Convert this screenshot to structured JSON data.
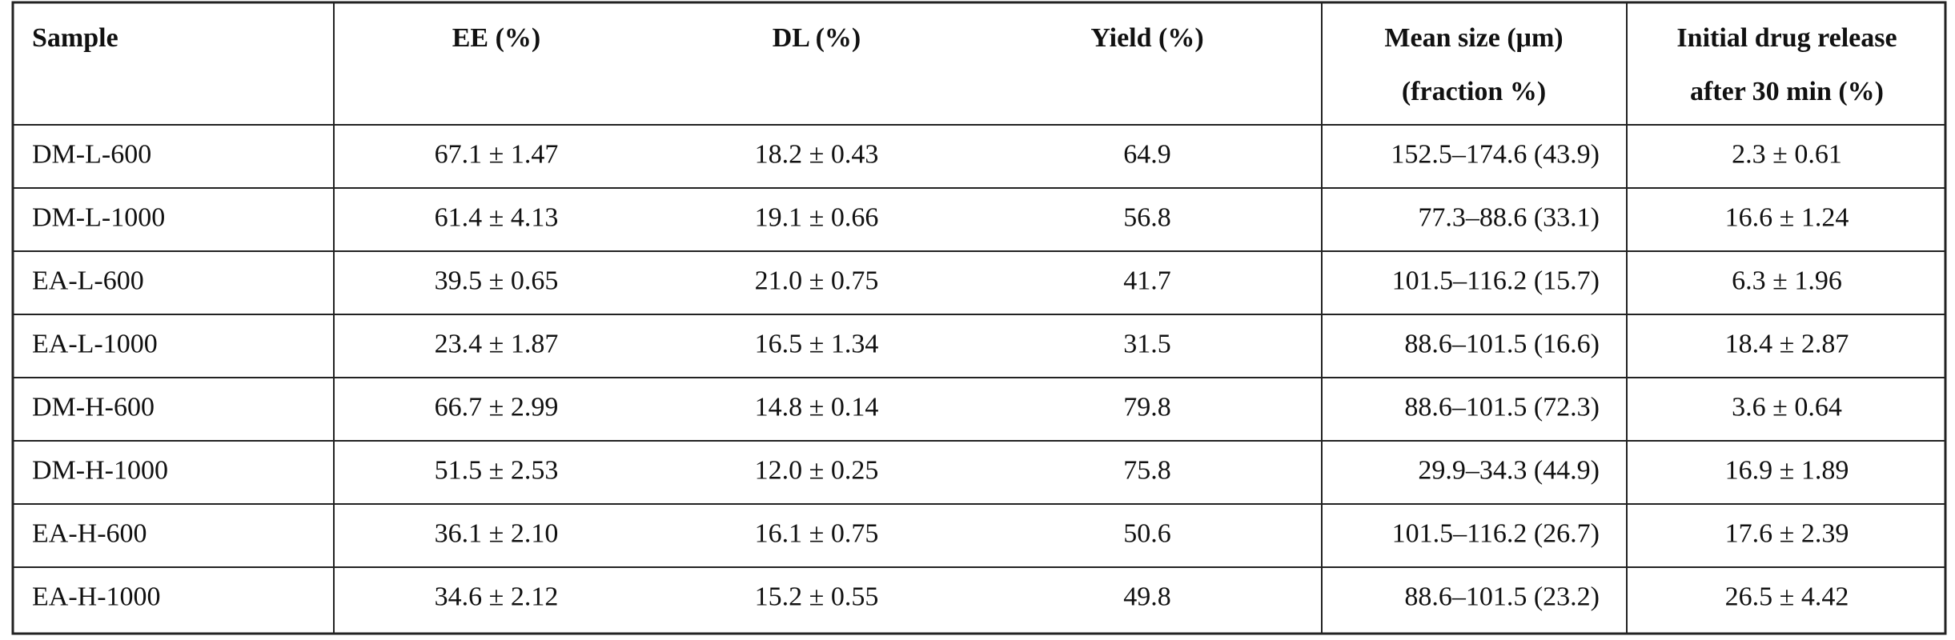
{
  "table": {
    "header": [
      [
        "Sample"
      ],
      [
        "EE (%)"
      ],
      [
        "DL (%)"
      ],
      [
        "Yield (%)"
      ],
      [
        "Mean size (μm)",
        "(fraction %)"
      ],
      [
        "Initial drug release",
        "after 30 min (%)"
      ]
    ],
    "rows": [
      [
        "DM-L-600",
        "67.1 ± 1.47",
        "18.2 ± 0.43",
        "64.9",
        "152.5–174.6 (43.9)",
        "2.3 ± 0.61"
      ],
      [
        "DM-L-1000",
        "61.4 ± 4.13",
        "19.1 ± 0.66",
        "56.8",
        "77.3–88.6 (33.1)",
        "16.6 ± 1.24"
      ],
      [
        "EA-L-600",
        "39.5 ± 0.65",
        "21.0 ± 0.75",
        "41.7",
        "101.5–116.2 (15.7)",
        "6.3 ± 1.96"
      ],
      [
        "EA-L-1000",
        "23.4 ± 1.87",
        "16.5 ± 1.34",
        "31.5",
        "88.6–101.5 (16.6)",
        "18.4 ± 2.87"
      ],
      [
        "DM-H-600",
        "66.7 ± 2.99",
        "14.8 ± 0.14",
        "79.8",
        "88.6–101.5 (72.3)",
        "3.6 ± 0.64"
      ],
      [
        "DM-H-1000",
        "51.5 ± 2.53",
        "12.0 ± 0.25",
        "75.8",
        "29.9–34.3 (44.9)",
        "16.9 ± 1.89"
      ],
      [
        "EA-H-600",
        "36.1 ± 2.10",
        "16.1 ± 0.75",
        "50.6",
        "101.5–116.2 (26.7)",
        "17.6 ± 2.39"
      ],
      [
        "EA-H-1000",
        "34.6 ± 2.12",
        "15.2 ± 0.55",
        "49.8",
        "88.6–101.5 (23.2)",
        "26.5 ± 4.42"
      ]
    ]
  }
}
